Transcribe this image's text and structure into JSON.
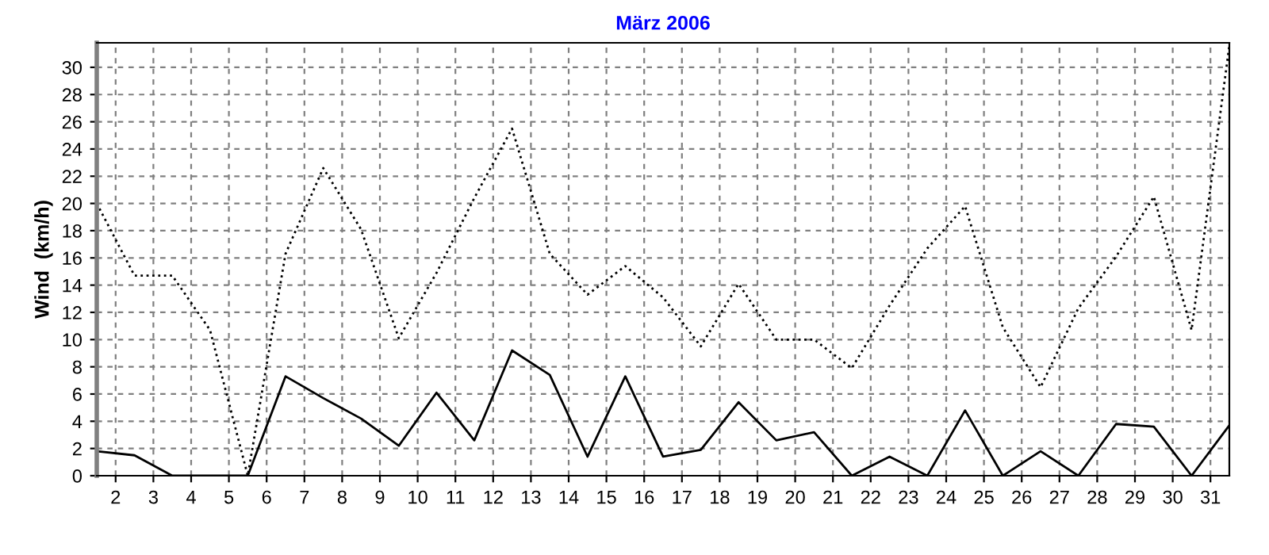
{
  "chart_data": {
    "type": "line",
    "title": "März 2006",
    "ylabel": "Wind  (km/h)",
    "x": [
      1.5,
      2.5,
      3.5,
      4.5,
      5.5,
      6.5,
      7.5,
      8.5,
      9.5,
      10.5,
      11.5,
      12.5,
      13.5,
      14.5,
      15.5,
      16.5,
      17.5,
      18.5,
      19.5,
      20.5,
      21.5,
      22.5,
      23.5,
      24.5,
      25.5,
      26.5,
      27.5,
      28.5,
      29.5,
      30.5,
      31.5
    ],
    "series": [
      {
        "color": "#000000",
        "line_style": "dotted",
        "values": [
          20.0,
          14.7,
          14.7,
          10.7,
          0,
          16.3,
          22.6,
          18.1,
          10.1,
          14.9,
          20.4,
          25.5,
          16.3,
          13.3,
          15.4,
          13.1,
          9.5,
          14.1,
          10.0,
          10.0,
          7.9,
          12.5,
          16.7,
          19.8,
          10.9,
          6.5,
          12.3,
          16.1,
          20.5,
          10.7,
          31.6
        ]
      },
      {
        "color": "#000000",
        "line_style": "solid",
        "values": [
          1.8,
          1.5,
          0,
          0,
          0,
          7.3,
          5.7,
          4.2,
          2.2,
          6.1,
          2.6,
          9.2,
          7.4,
          1.4,
          7.3,
          1.4,
          1.9,
          5.4,
          2.6,
          3.2,
          0,
          1.4,
          0,
          4.8,
          0,
          1.8,
          0,
          3.8,
          3.6,
          0,
          3.7
        ]
      }
    ],
    "xlim": [
      1.5,
      31.5
    ],
    "xticks": [
      2,
      3,
      4,
      5,
      6,
      7,
      8,
      9,
      10,
      11,
      12,
      13,
      14,
      15,
      16,
      17,
      18,
      19,
      20,
      21,
      22,
      23,
      24,
      25,
      26,
      27,
      28,
      29,
      30,
      31
    ],
    "ylim": [
      0,
      31.8
    ],
    "yticks": [
      0,
      2,
      4,
      6,
      8,
      10,
      12,
      14,
      16,
      18,
      20,
      22,
      24,
      26,
      28,
      30
    ],
    "grid": true,
    "legend": false,
    "marker": "none"
  }
}
